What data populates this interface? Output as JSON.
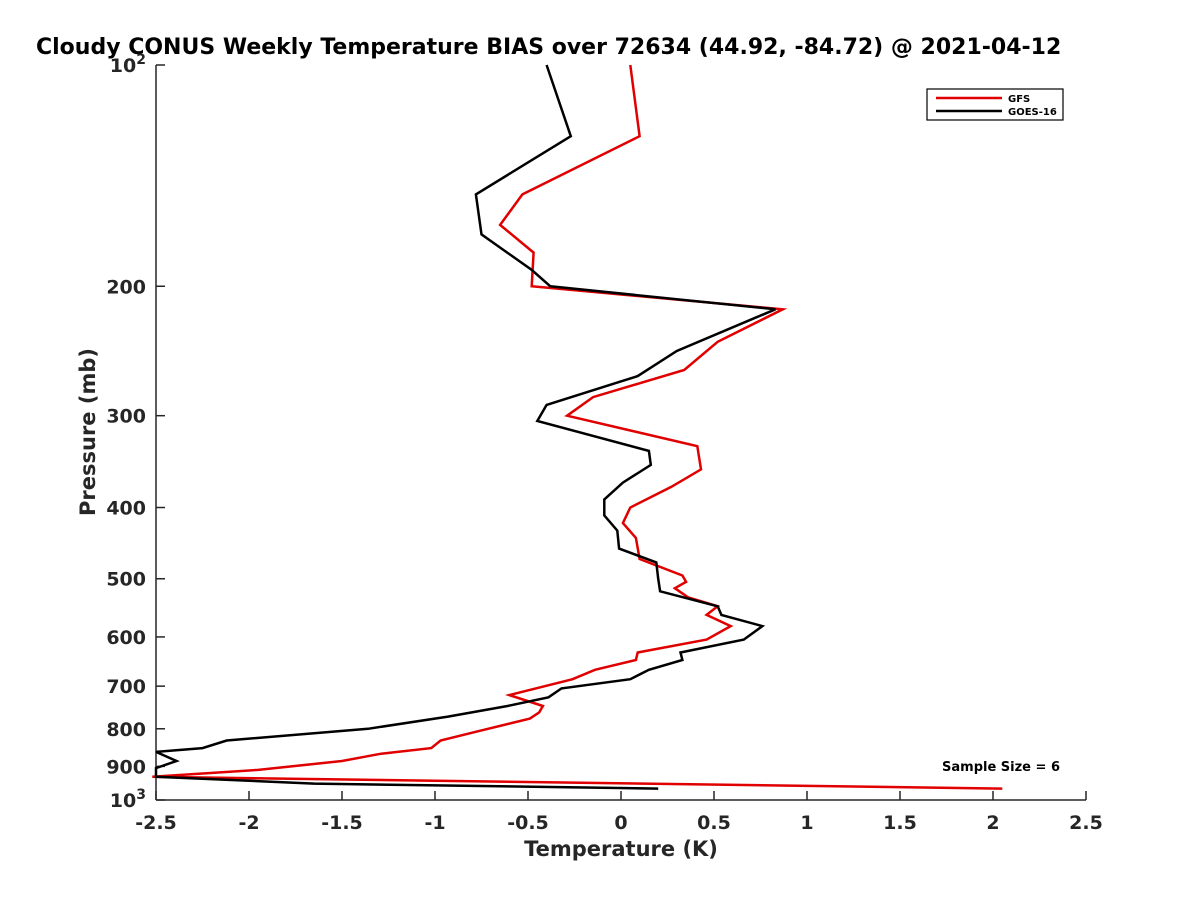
{
  "chart_data": {
    "type": "line",
    "title": "Cloudy CONUS Weekly Temperature BIAS over 72634 (44.92, -84.72) @ 2021-04-12",
    "xlabel": "Temperature (K)",
    "ylabel": "Pressure (mb)",
    "xlim": [
      -2.5,
      2.5
    ],
    "ylim": [
      100,
      1000
    ],
    "y_scale": "log",
    "y_reversed": true,
    "xticks": [
      -2.5,
      -2,
      -1.5,
      -1,
      -0.5,
      0,
      0.5,
      1,
      1.5,
      2,
      2.5
    ],
    "xtick_labels": [
      "-2.5",
      "-2",
      "-1.5",
      "-1",
      "-0.5",
      "0",
      "0.5",
      "1",
      "1.5",
      "2",
      "2.5"
    ],
    "yticks": [
      200,
      300,
      400,
      500,
      600,
      700,
      800,
      900
    ],
    "ytick_labels": [
      "200",
      "300",
      "400",
      "500",
      "600",
      "700",
      "800",
      "900"
    ],
    "ytick_min_label": {
      "base": "10",
      "exp": "2"
    },
    "ytick_max_label": {
      "base": "10",
      "exp": "3"
    },
    "grid": false,
    "legend_position": "top-right",
    "annotation": "Sample Size = 6",
    "series": [
      {
        "name": "GFS",
        "color": "#e00000",
        "points": [
          [
            0.05,
            100
          ],
          [
            0.1,
            125
          ],
          [
            -0.53,
            150
          ],
          [
            -0.65,
            165
          ],
          [
            -0.47,
            180
          ],
          [
            -0.48,
            200
          ],
          [
            0.87,
            215
          ],
          [
            0.52,
            238
          ],
          [
            0.34,
            260
          ],
          [
            -0.15,
            283
          ],
          [
            -0.29,
            300
          ],
          [
            0.41,
            330
          ],
          [
            0.43,
            355
          ],
          [
            0.27,
            375
          ],
          [
            0.05,
            400
          ],
          [
            0.01,
            420
          ],
          [
            0.08,
            440
          ],
          [
            0.1,
            470
          ],
          [
            0.33,
            495
          ],
          [
            0.35,
            505
          ],
          [
            0.29,
            515
          ],
          [
            0.36,
            530
          ],
          [
            0.52,
            545
          ],
          [
            0.46,
            560
          ],
          [
            0.59,
            580
          ],
          [
            0.46,
            605
          ],
          [
            0.09,
            630
          ],
          [
            0.08,
            645
          ],
          [
            -0.14,
            665
          ],
          [
            -0.26,
            685
          ],
          [
            -0.6,
            720
          ],
          [
            -0.42,
            745
          ],
          [
            -0.44,
            760
          ],
          [
            -0.49,
            775
          ],
          [
            -0.8,
            810
          ],
          [
            -0.97,
            830
          ],
          [
            -1.02,
            850
          ],
          [
            -1.29,
            865
          ],
          [
            -1.5,
            885
          ],
          [
            -1.95,
            910
          ],
          [
            -2.52,
            930
          ],
          [
            2.05,
            965
          ]
        ]
      },
      {
        "name": "GOES-16",
        "color": "#000000",
        "points": [
          [
            -0.4,
            100
          ],
          [
            -0.27,
            125
          ],
          [
            -0.78,
            150
          ],
          [
            -0.75,
            170
          ],
          [
            -0.48,
            190
          ],
          [
            -0.38,
            200
          ],
          [
            0.83,
            215
          ],
          [
            0.3,
            245
          ],
          [
            0.09,
            265
          ],
          [
            -0.4,
            290
          ],
          [
            -0.45,
            305
          ],
          [
            0.15,
            335
          ],
          [
            0.16,
            350
          ],
          [
            0.01,
            370
          ],
          [
            -0.09,
            390
          ],
          [
            -0.09,
            410
          ],
          [
            -0.02,
            430
          ],
          [
            -0.01,
            455
          ],
          [
            0.19,
            475
          ],
          [
            0.2,
            500
          ],
          [
            0.21,
            520
          ],
          [
            0.52,
            545
          ],
          [
            0.54,
            560
          ],
          [
            0.76,
            580
          ],
          [
            0.66,
            605
          ],
          [
            0.32,
            630
          ],
          [
            0.33,
            645
          ],
          [
            0.15,
            665
          ],
          [
            0.05,
            685
          ],
          [
            -0.32,
            705
          ],
          [
            -0.39,
            725
          ],
          [
            -0.61,
            745
          ],
          [
            -0.93,
            770
          ],
          [
            -1.36,
            800
          ],
          [
            -2.12,
            830
          ],
          [
            -2.25,
            850
          ],
          [
            -2.5,
            860
          ],
          [
            -2.39,
            885
          ],
          [
            -2.5,
            905
          ],
          [
            -2.5,
            930
          ],
          [
            -1.65,
            950
          ],
          [
            0.2,
            965
          ]
        ]
      }
    ]
  }
}
